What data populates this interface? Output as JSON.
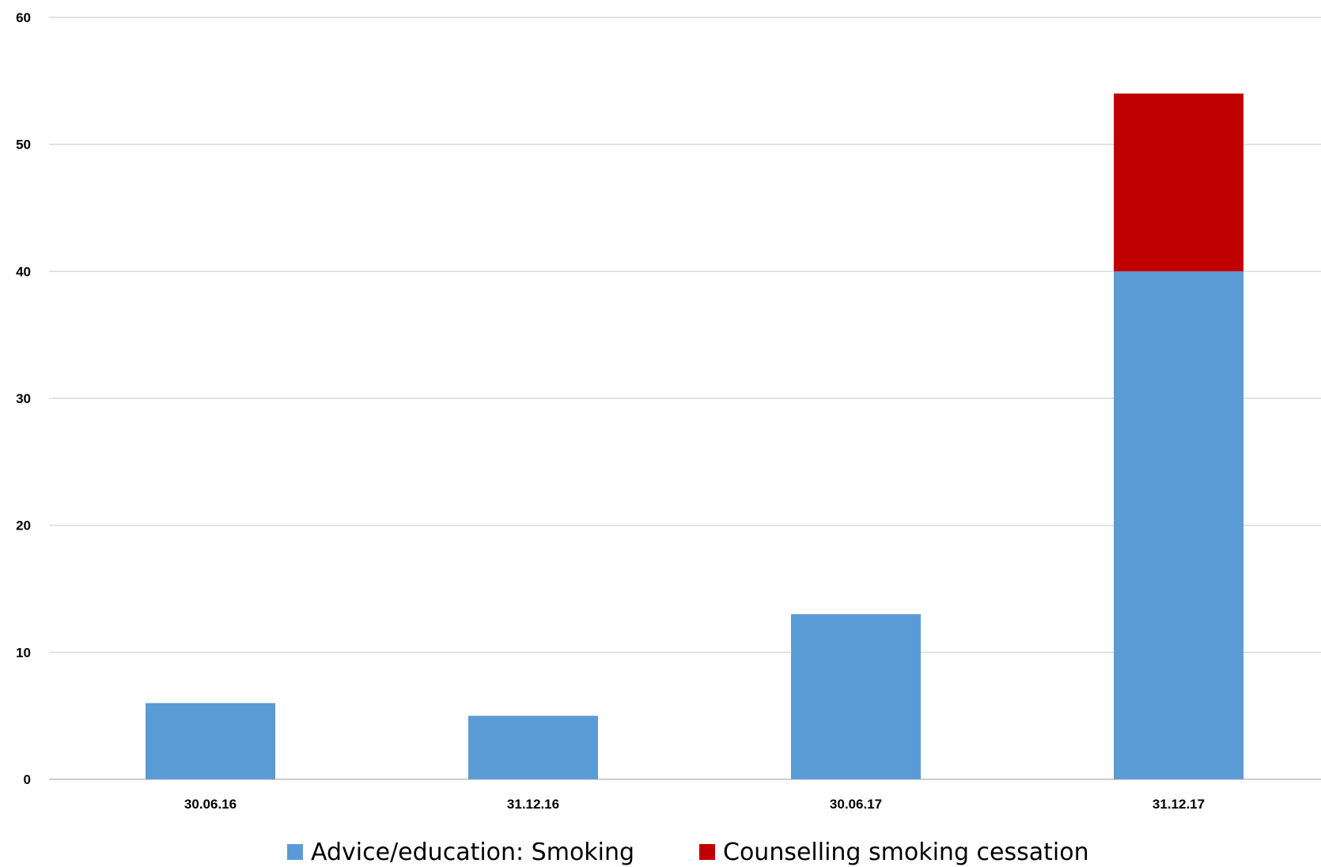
{
  "chart_data": {
    "type": "bar",
    "stacked": true,
    "title": "",
    "xlabel": "",
    "ylabel": "",
    "categories": [
      "30.06.16",
      "31.12.16",
      "30.06.17",
      "31.12.17"
    ],
    "series": [
      {
        "name": "Advice/education: Smoking",
        "values": [
          6,
          5,
          13,
          40
        ],
        "color": "#5b9bd5"
      },
      {
        "name": "Counselling smoking cessation",
        "values": [
          0,
          0,
          0,
          14
        ],
        "color": "#c00000"
      }
    ],
    "ylim": [
      0,
      60
    ],
    "yticks": [
      0,
      10,
      20,
      30,
      40,
      50,
      60
    ],
    "grid": true,
    "legend_position": "bottom"
  }
}
